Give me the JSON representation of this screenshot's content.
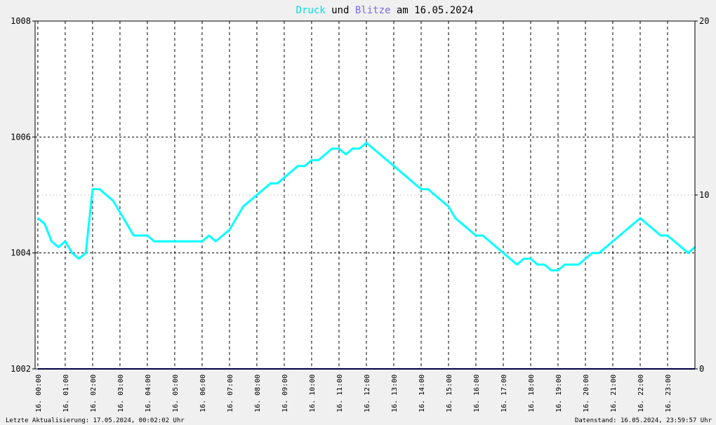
{
  "chart_data": {
    "type": "line",
    "title": {
      "parts": [
        {
          "text": "Druck",
          "color": "#00e0e0"
        },
        {
          "text": " und ",
          "color": "#000000"
        },
        {
          "text": "Blitze",
          "color": "#7b68ee"
        },
        {
          "text": " am 16.05.2024",
          "color": "#000000"
        }
      ]
    },
    "y_left": {
      "min": 1002,
      "max": 1008,
      "ticks": [
        "1002",
        "1004",
        "1006",
        "1008"
      ]
    },
    "y_right": {
      "min": 0,
      "max": 20,
      "ticks": [
        "0",
        "10",
        "20"
      ]
    },
    "x_labels": [
      "16. 00:00",
      "16. 01:00",
      "16. 02:00",
      "16. 03:00",
      "16. 04:00",
      "16. 05:00",
      "16. 06:00",
      "16. 07:00",
      "16. 08:00",
      "16. 09:00",
      "16. 10:00",
      "16. 11:00",
      "16. 12:00",
      "16. 13:00",
      "16. 14:00",
      "16. 15:00",
      "16. 16:00",
      "16. 17:00",
      "16. 18:00",
      "16. 19:00",
      "16. 20:00",
      "16. 21:00",
      "16. 22:00",
      "16. 23:00"
    ],
    "series": [
      {
        "name": "Druck",
        "color": "#00ffff",
        "axis": "left",
        "x_hours": [
          0,
          0.25,
          0.5,
          0.75,
          1,
          1.25,
          1.5,
          1.75,
          2,
          2.25,
          2.5,
          2.75,
          3,
          3.25,
          3.5,
          3.75,
          4,
          4.25,
          4.5,
          4.75,
          5,
          5.25,
          5.5,
          5.75,
          6,
          6.25,
          6.5,
          6.75,
          7,
          7.25,
          7.5,
          7.75,
          8,
          8.25,
          8.5,
          8.75,
          9,
          9.25,
          9.5,
          9.75,
          10,
          10.25,
          10.5,
          10.75,
          11,
          11.25,
          11.5,
          11.75,
          12,
          12.25,
          12.5,
          12.75,
          13,
          13.25,
          13.5,
          13.75,
          14,
          14.25,
          14.5,
          14.75,
          15,
          15.25,
          15.5,
          15.75,
          16,
          16.25,
          16.5,
          16.75,
          17,
          17.25,
          17.5,
          17.75,
          18,
          18.25,
          18.5,
          18.75,
          19,
          19.25,
          19.5,
          19.75,
          20,
          20.25,
          20.5,
          20.75,
          21,
          21.25,
          21.5,
          21.75,
          22,
          22.25,
          22.5,
          22.75,
          23,
          23.25,
          23.5,
          23.75,
          24
        ],
        "values": [
          1004.6,
          1004.5,
          1004.2,
          1004.1,
          1004.2,
          1004.0,
          1003.9,
          1004.0,
          1005.1,
          1005.1,
          1005.0,
          1004.9,
          1004.7,
          1004.5,
          1004.3,
          1004.3,
          1004.3,
          1004.2,
          1004.2,
          1004.2,
          1004.2,
          1004.2,
          1004.2,
          1004.2,
          1004.2,
          1004.3,
          1004.2,
          1004.3,
          1004.4,
          1004.6,
          1004.8,
          1004.9,
          1005.0,
          1005.1,
          1005.2,
          1005.2,
          1005.3,
          1005.4,
          1005.5,
          1005.5,
          1005.6,
          1005.6,
          1005.7,
          1005.8,
          1005.8,
          1005.7,
          1005.8,
          1005.8,
          1005.9,
          1005.8,
          1005.7,
          1005.6,
          1005.5,
          1005.4,
          1005.3,
          1005.2,
          1005.1,
          1005.1,
          1005.0,
          1004.9,
          1004.8,
          1004.6,
          1004.5,
          1004.4,
          1004.3,
          1004.3,
          1004.2,
          1004.1,
          1004.0,
          1003.9,
          1003.8,
          1003.9,
          1003.9,
          1003.8,
          1003.8,
          1003.7,
          1003.7,
          1003.8,
          1003.8,
          1003.8,
          1003.9,
          1004.0,
          1004.0,
          1004.1,
          1004.2,
          1004.3,
          1004.4,
          1004.5,
          1004.6,
          1004.5,
          1004.4,
          1004.3,
          1004.3,
          1004.2,
          1004.1,
          1004.0,
          1004.1
        ]
      },
      {
        "name": "Blitze",
        "color": "#000080",
        "axis": "right",
        "x_hours": [
          0,
          24
        ],
        "values": [
          0,
          0
        ]
      }
    ],
    "grid": true
  },
  "footer": {
    "left": "Letzte Aktualisierung: 17.05.2024, 00:02:02 Uhr",
    "right": "Datenstand: 16.05.2024, 23:59:57 Uhr"
  }
}
